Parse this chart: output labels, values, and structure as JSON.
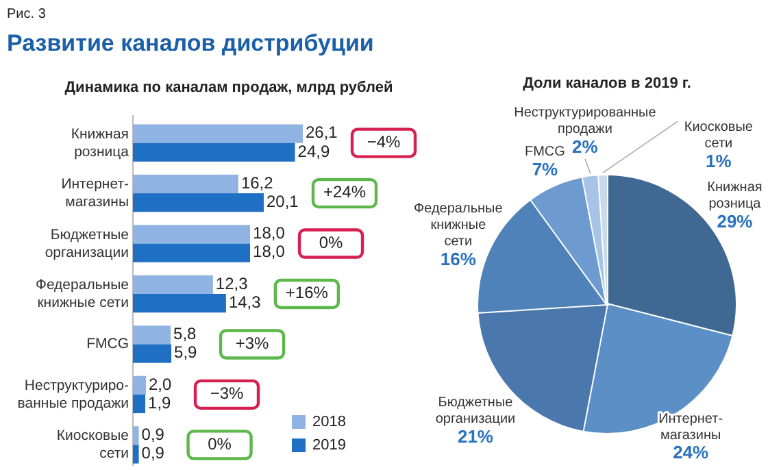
{
  "chart_data": [
    {
      "type": "bar",
      "orientation": "horizontal",
      "title": "Развитие каналов дистрибуции",
      "subtitle": "Динамика по каналам продаж, млрд рублей",
      "categories": [
        "Книжная\nрозница",
        "Интернет-\nмагазины",
        "Бюджетные\nорганизации",
        "Федеральные\nкнижные сети",
        "FMCG",
        "Неструктуриро-\nванные продажи",
        "Киосковые\nсети"
      ],
      "series": [
        {
          "name": "2018",
          "color": "#8fb4e3",
          "values": [
            26.1,
            16.2,
            18.0,
            12.3,
            5.8,
            2.0,
            0.9
          ],
          "value_labels": [
            "26,1",
            "16,2",
            "18,0",
            "12,3",
            "5,8",
            "2,0",
            "0,9"
          ]
        },
        {
          "name": "2019",
          "color": "#1f6fc5",
          "values": [
            24.9,
            20.1,
            18.0,
            14.3,
            5.9,
            1.9,
            0.9
          ],
          "value_labels": [
            "24,9",
            "20,1",
            "18,0",
            "14,3",
            "5,9",
            "1,9",
            "0,9"
          ]
        }
      ],
      "legend": "bottom right",
      "annotations": [
        "Рис. 3",
        "−4%",
        "+24%",
        "0%",
        "+16%",
        "+3%",
        "−3%",
        "0%"
      ]
    },
    {
      "type": "pie",
      "title": "Доли каналов в 2019 г.",
      "categories": [
        "Книжная\nрозница",
        "Интернет-\nмагазины",
        "Бюджетные\nорганизации",
        "Федеральные\nкнижные\nсети",
        "FMCG",
        "Неструктурированные\nпродажи",
        "Киосковые\nсети"
      ],
      "values": [
        29,
        24,
        21,
        16,
        7,
        2,
        1
      ],
      "value_labels": [
        "29%",
        "24%",
        "21%",
        "16%",
        "7%",
        "2%",
        "1%"
      ],
      "colors": [
        "#3f6892",
        "#5b8fc5",
        "#4a78ad",
        "#4f82b8",
        "#6d9bd0",
        "#a7c3e6",
        "#c9d9ee"
      ]
    }
  ]
}
